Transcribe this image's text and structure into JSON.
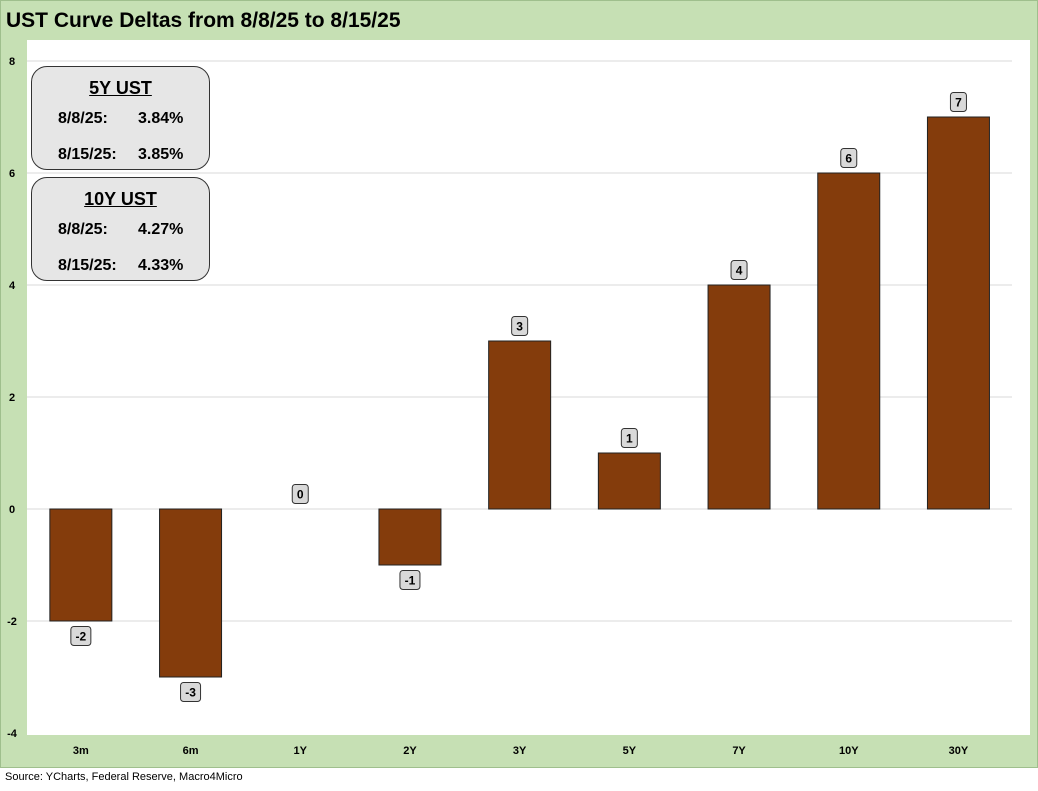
{
  "title": "UST Curve Deltas from 8/8/25 to 8/15/25",
  "source": "Source: YCharts, Federal Reserve, Macro4Micro",
  "colors": {
    "frame_bg": "#c6e0b4",
    "plot_bg": "#ffffff",
    "bar_fill": "#843c0c",
    "bar_stroke": "#222222",
    "label_bg": "#d9d9d9",
    "gridline": "#d9d9d9"
  },
  "info_boxes": [
    {
      "title": "5Y UST",
      "rows": [
        {
          "date": "8/8/25:",
          "value": "3.84%"
        },
        {
          "date": "8/15/25:",
          "value": "3.85%"
        }
      ]
    },
    {
      "title": "10Y UST",
      "rows": [
        {
          "date": "8/8/25:",
          "value": "4.27%"
        },
        {
          "date": "8/15/25:",
          "value": "4.33%"
        }
      ]
    }
  ],
  "chart_data": {
    "type": "bar",
    "title": "UST Curve Deltas from 8/8/25 to 8/15/25",
    "categories": [
      "3m",
      "6m",
      "1Y",
      "2Y",
      "3Y",
      "5Y",
      "7Y",
      "10Y",
      "30Y"
    ],
    "values": [
      -2,
      -3,
      0,
      -1,
      3,
      1,
      4,
      6,
      7
    ],
    "data_labels": [
      "-2",
      "-3",
      "0",
      "-1",
      "3",
      "1",
      "4",
      "6",
      "7"
    ],
    "xlabel": "",
    "ylabel": "",
    "ylim": [
      -4,
      8
    ],
    "yticks": [
      -4,
      -2,
      0,
      2,
      4,
      6,
      8
    ],
    "ytick_labels": [
      "-4",
      "-2",
      "0",
      "2",
      "4",
      "6",
      "8"
    ],
    "grid": true,
    "legend": "none"
  }
}
